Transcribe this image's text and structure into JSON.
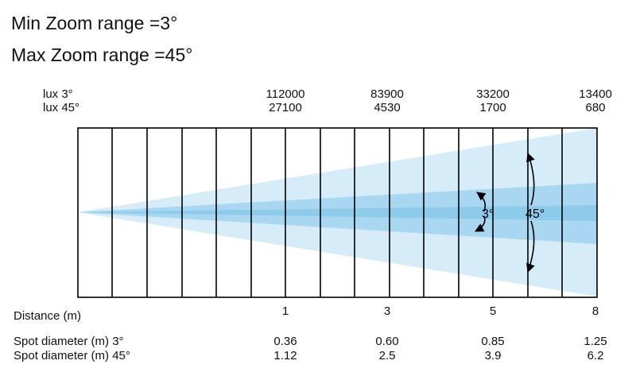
{
  "header": {
    "min_zoom": "Min Zoom range =3°",
    "max_zoom": "Max Zoom range =45°"
  },
  "lux_rows": {
    "label_3": "lux 3°",
    "label_45": "lux 45°",
    "values_3": [
      "112000",
      "83900",
      "33200",
      "13400"
    ],
    "values_45": [
      "27100",
      "4530",
      "1700",
      "680"
    ]
  },
  "beam": {
    "angle_narrow": "3°",
    "angle_wide": "45°",
    "color_outer": "#d6ecf8",
    "color_inner": "#a9d6f0",
    "color_core": "#8ecae9"
  },
  "distance": {
    "label": "Distance (m)",
    "values": [
      "1",
      "3",
      "5",
      "8"
    ]
  },
  "spot": {
    "label_3": "Spot diameter (m) 3°",
    "label_45": "Spot diameter (m) 45°",
    "values_3": [
      "0.36",
      "0.60",
      "0.85",
      "1.25"
    ],
    "values_45": [
      "1.12",
      "2.5",
      "3.9",
      "6.2"
    ]
  }
}
